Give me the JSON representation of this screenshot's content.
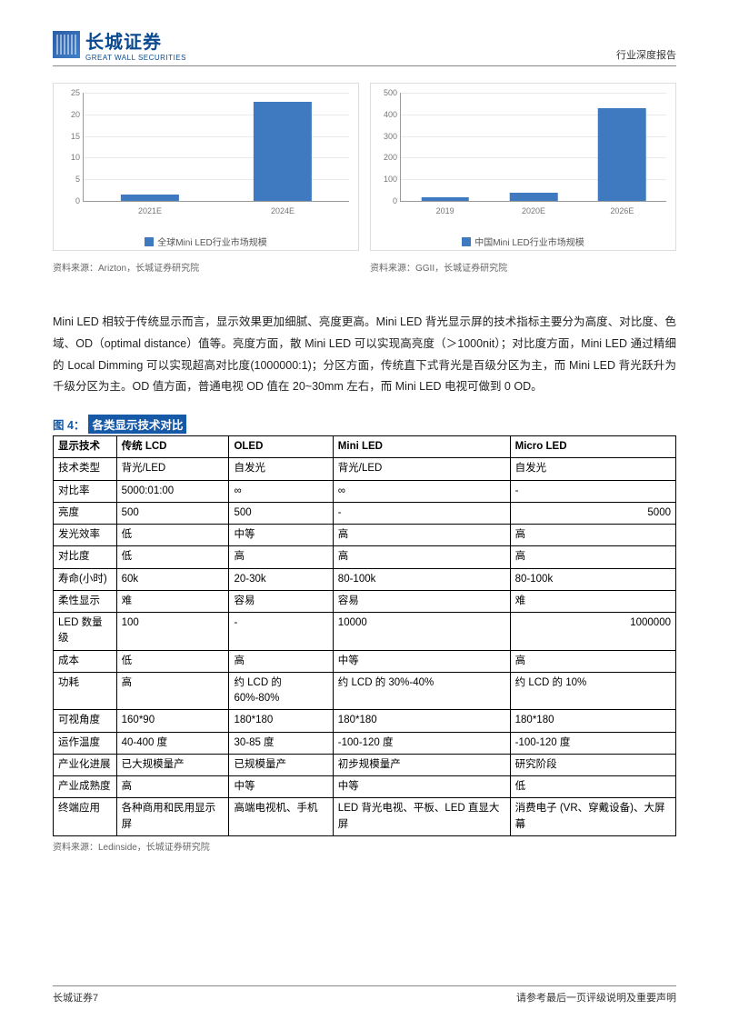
{
  "header": {
    "company_cn": "长城证券",
    "company_en": "GREAT WALL SECURITIES",
    "doc_type": "行业深度报告"
  },
  "chart_left": {
    "type": "bar",
    "ylim": [
      0,
      25
    ],
    "ytick_step": 5,
    "categories": [
      "2021E",
      "2024E"
    ],
    "values": [
      1.5,
      23
    ],
    "bar_color": "#3f79bf",
    "bar_width_pct": 22,
    "grid_color": "#eaeaea",
    "axis_color": "#999999",
    "label_color": "#777777",
    "label_fontsize": 9,
    "legend_label": "全球Mini LED行业市场规模",
    "legend_color": "#3f79bf",
    "source": "资料来源：Arizton，长城证券研究院"
  },
  "chart_right": {
    "type": "bar",
    "ylim": [
      0,
      500
    ],
    "ytick_step": 100,
    "categories": [
      "2019",
      "2020E",
      "2026E"
    ],
    "values": [
      16,
      38,
      430
    ],
    "bar_color": "#3f79bf",
    "bar_width_pct": 18,
    "grid_color": "#eaeaea",
    "axis_color": "#999999",
    "label_color": "#777777",
    "label_fontsize": 9,
    "legend_label": "中国Mini LED行业市场规模",
    "legend_color": "#3f79bf",
    "source": "资料来源：GGII，长城证券研究院"
  },
  "paragraph": "Mini LED 相较于传统显示而言，显示效果更加细腻、亮度更高。Mini LED 背光显示屏的技术指标主要分为高度、对比度、色域、OD（optimal distance）值等。亮度方面，散 Mini LED 可以实现高亮度（＞1000nit）；对比度方面，Mini LED 通过精细的 Local Dimming 可以实现超高对比度(1000000:1)；分区方面，传统直下式背光是百级分区为主，而 Mini LED 背光跃升为千级分区为主。OD 值方面，普通电视 OD 值在 20~30mm 左右，而 Mini LED 电视可做到 0 OD。",
  "figure4": {
    "label": "图 4：",
    "title": "各类显示技术对比",
    "source": "资料来源：Ledinside，长城证券研究院",
    "columns": [
      "显示技术",
      "传统 LCD",
      "OLED",
      "Mini LED",
      "Micro LED"
    ],
    "rows": [
      {
        "k": "技术类型",
        "v": [
          "背光/LED",
          "自发光",
          "背光/LED",
          "自发光"
        ]
      },
      {
        "k": "对比率",
        "v": [
          "5000:01:00",
          "∞",
          "∞",
          "-"
        ]
      },
      {
        "k": "亮度",
        "v": [
          "500",
          "500",
          "-",
          "5000"
        ],
        "align": [
          "",
          "",
          "",
          "right"
        ]
      },
      {
        "k": "发光效率",
        "v": [
          "低",
          "中等",
          "高",
          "高"
        ]
      },
      {
        "k": "对比度",
        "v": [
          "低",
          "高",
          "高",
          "高"
        ]
      },
      {
        "k": "寿命(小时)",
        "v": [
          "60k",
          "20-30k",
          "80-100k",
          "80-100k"
        ]
      },
      {
        "k": "柔性显示",
        "v": [
          "难",
          "容易",
          "容易",
          "难"
        ]
      },
      {
        "k": "LED 数量级",
        "v": [
          "100",
          "-",
          "10000",
          "1000000"
        ],
        "align": [
          "",
          "",
          "",
          "right"
        ]
      },
      {
        "k": "成本",
        "v": [
          "低",
          "高",
          "中等",
          "高"
        ]
      },
      {
        "k": "功耗",
        "v": [
          "高",
          "约 LCD 的 60%-80%",
          "约 LCD 的 30%-40%",
          "约 LCD 的 10%"
        ]
      },
      {
        "k": "可视角度",
        "v": [
          "160*90",
          "180*180",
          "180*180",
          "180*180"
        ]
      },
      {
        "k": "运作温度",
        "v": [
          "40-400 度",
          "30-85 度",
          "-100-120 度",
          "-100-120 度"
        ]
      },
      {
        "k": "产业化进展",
        "v": [
          "已大规模量产",
          "已规模量产",
          "初步规模量产",
          "研究阶段"
        ]
      },
      {
        "k": "产业成熟度",
        "v": [
          "高",
          "中等",
          "中等",
          "低"
        ]
      },
      {
        "k": "终端应用",
        "v": [
          "各种商用和民用显示屏",
          "高端电视机、手机",
          "LED 背光电视、平板、LED 直显大屏",
          "消费电子 (VR、穿戴设备)、大屏幕"
        ]
      }
    ]
  },
  "footer": {
    "left": "长城证券7",
    "right": "请参考最后一页评级说明及重要声明"
  }
}
